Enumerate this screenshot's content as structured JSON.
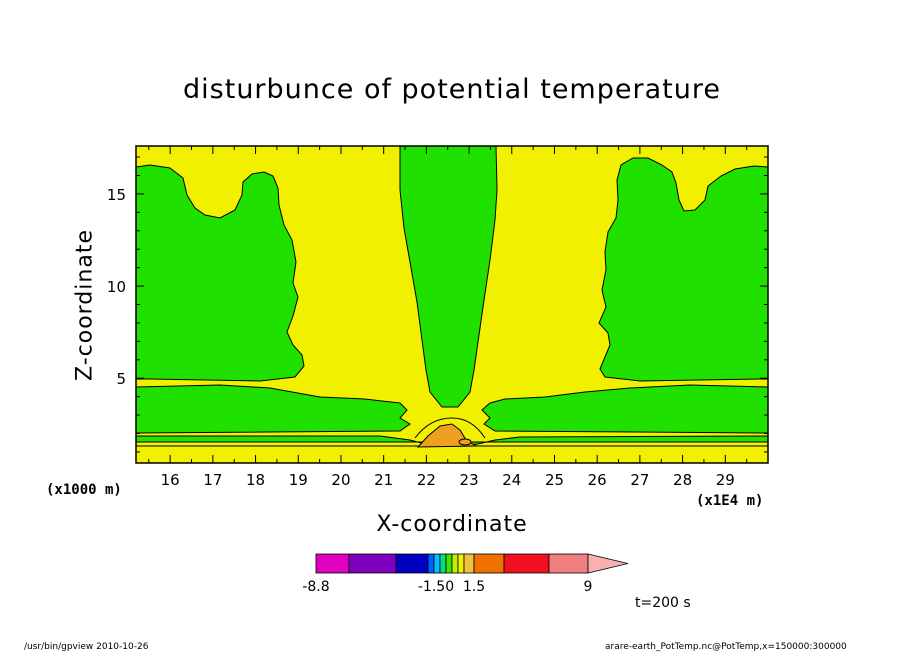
{
  "chart_data": {
    "type": "heatmap",
    "title": "disturbunce of potential temperature",
    "xlabel": "X-coordinate",
    "ylabel": "Z-coordinate",
    "x_unit_label": "(x1E4 m)",
    "y_unit_label": "(x1000 m)",
    "xlim": [
      15.2,
      30
    ],
    "ylim": [
      0.4,
      17.6
    ],
    "xticks": [
      "16",
      "17",
      "18",
      "19",
      "20",
      "21",
      "22",
      "23",
      "24",
      "25",
      "26",
      "27",
      "28",
      "29"
    ],
    "yticks": [
      "5",
      "10",
      "15"
    ],
    "regions": [
      {
        "level": "background",
        "color": "#f0f000"
      },
      {
        "level": "negative",
        "color": "#20e000"
      },
      {
        "level": "positive max",
        "color": "#f0a020"
      }
    ],
    "colorbar": {
      "colors": [
        "#e000c0",
        "#8000c0",
        "#0000c0",
        "#0060ff",
        "#00c0ff",
        "#00e080",
        "#40e000",
        "#c0f000",
        "#f0f000",
        "#f0c040",
        "#f07000",
        "#f01020",
        "#f08080",
        "#f8b0b0"
      ],
      "tick_labels": [
        "-8.8",
        "-1.50",
        "1.5",
        "9"
      ]
    },
    "time_label": "t=200 s"
  },
  "footer": {
    "left": "/usr/bin/gpview   2010-10-26",
    "right": "arare-earth_PotTemp.nc@PotTemp,x=150000:300000"
  }
}
